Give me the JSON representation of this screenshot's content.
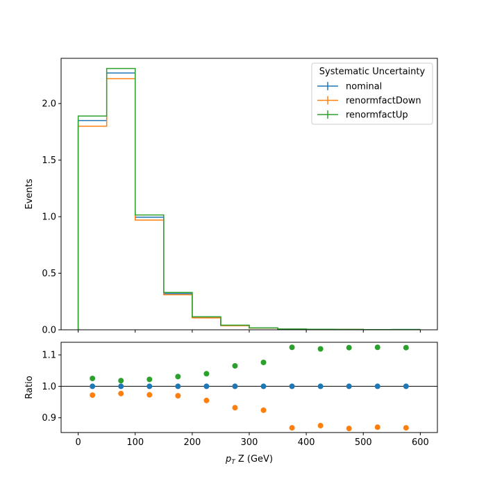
{
  "chart_data": [
    {
      "type": "line",
      "step": true,
      "xlabel_parts": {
        "p": "p",
        "sub": "T",
        "rest": " Z (GeV)"
      },
      "ylabel": "Events",
      "xlim": [
        -30,
        630
      ],
      "ylim": [
        0,
        2.4
      ],
      "bin_edges": [
        0,
        50,
        100,
        150,
        200,
        250,
        300,
        350,
        400,
        450,
        500,
        550,
        600
      ],
      "x_ticks": [
        0,
        100,
        200,
        300,
        400,
        500,
        600
      ],
      "y_ticks": [
        0.0,
        0.5,
        1.0,
        1.5,
        2.0
      ],
      "y_tick_labels": [
        "0.0",
        "0.5",
        "1.0",
        "1.5",
        "2.0"
      ],
      "legend": {
        "title": "Systematic Uncertainty",
        "placement": "top-right"
      },
      "series": [
        {
          "name": "nominal",
          "color": "#1f77b4",
          "values": [
            1.85,
            2.27,
            0.995,
            0.32,
            0.11,
            0.038,
            0.016,
            0.006,
            0.004,
            0.003,
            0.0015,
            0.002
          ]
        },
        {
          "name": "renormfactDown",
          "color": "#ff7f0e",
          "values": [
            1.8,
            2.22,
            0.97,
            0.31,
            0.105,
            0.036,
            0.015,
            0.0055,
            0.0037,
            0.0028,
            0.0013,
            0.0018
          ]
        },
        {
          "name": "renormfactUp",
          "color": "#2ca02c",
          "values": [
            1.89,
            2.31,
            1.015,
            0.33,
            0.115,
            0.041,
            0.017,
            0.0068,
            0.0045,
            0.0034,
            0.0017,
            0.0023
          ]
        }
      ]
    },
    {
      "type": "scatter",
      "xlabel": "",
      "ylabel": "Ratio",
      "xlim": [
        -30,
        630
      ],
      "ylim": [
        0.853,
        1.14
      ],
      "reference_line": 1.0,
      "x": [
        25,
        75,
        125,
        175,
        225,
        275,
        325,
        375,
        425,
        475,
        525,
        575
      ],
      "x_ticks": [
        0,
        100,
        200,
        300,
        400,
        500,
        600
      ],
      "x_tick_labels": [
        "0",
        "100",
        "200",
        "300",
        "400",
        "500",
        "600"
      ],
      "y_ticks": [
        0.9,
        1.0,
        1.1
      ],
      "y_tick_labels": [
        "0.9",
        "1.0",
        "1.1"
      ],
      "series": [
        {
          "name": "nominal",
          "color": "#1f77b4",
          "values": [
            1.0,
            1.0,
            1.0,
            1.0,
            1.0,
            1.0,
            1.0,
            1.0,
            1.0,
            1.0,
            1.0,
            1.0
          ]
        },
        {
          "name": "renormfactDown",
          "color": "#ff7f0e",
          "values": [
            0.972,
            0.977,
            0.973,
            0.97,
            0.955,
            0.932,
            0.924,
            0.868,
            0.875,
            0.866,
            0.87,
            0.868
          ]
        },
        {
          "name": "renormfactUp",
          "color": "#2ca02c",
          "values": [
            1.025,
            1.018,
            1.022,
            1.031,
            1.04,
            1.065,
            1.076,
            1.124,
            1.119,
            1.123,
            1.124,
            1.123
          ]
        }
      ]
    }
  ]
}
